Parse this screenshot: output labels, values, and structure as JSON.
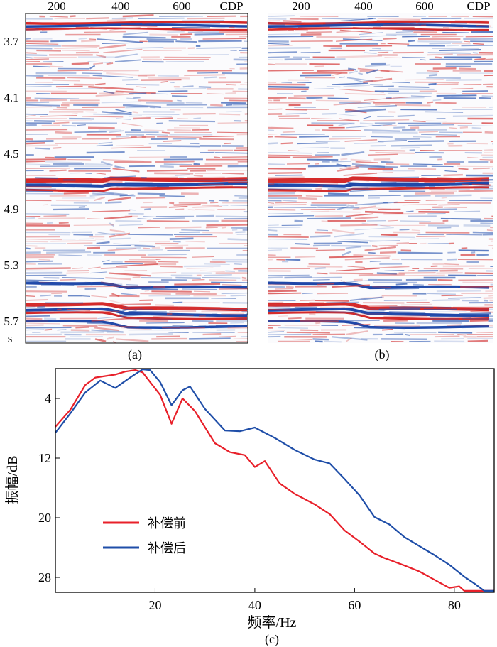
{
  "seismic_panels": [
    {
      "label": "(a)",
      "x_tick_labels": [
        "200",
        "400",
        "600"
      ],
      "x_unit": "CDP",
      "y_tick_labels": [
        "3.7",
        "4.1",
        "4.5",
        "4.9",
        "5.3",
        "5.7"
      ],
      "y_unit": "s"
    },
    {
      "label": "(b)",
      "x_tick_labels": [
        "200",
        "400",
        "600"
      ],
      "x_unit": "CDP"
    }
  ],
  "chart_data": {
    "type": "line",
    "label": "(c)",
    "xlabel": "频率/Hz",
    "ylabel": "振幅/dB",
    "xlim": [
      0,
      88
    ],
    "ylim": [
      0,
      30
    ],
    "y_inverted": true,
    "x_ticks": [
      20,
      40,
      60,
      80
    ],
    "y_ticks": [
      4,
      12,
      20,
      28
    ],
    "series": [
      {
        "name": "补偿前",
        "color": "#e8202a",
        "x": [
          0,
          3,
          6,
          8,
          10,
          12,
          14,
          16,
          17.5,
          19,
          21,
          23.3,
          25.5,
          28,
          32,
          35,
          38,
          40,
          42,
          45,
          48,
          52,
          55,
          58,
          61,
          64,
          66,
          70,
          73,
          76,
          79,
          81,
          82,
          88
        ],
        "y": [
          7.8,
          5.5,
          2.2,
          1.2,
          1.0,
          0.8,
          0.4,
          0.2,
          0.5,
          1.8,
          3.5,
          7.4,
          4.0,
          5.7,
          10.0,
          11.2,
          11.6,
          13.2,
          12.4,
          15.4,
          16.8,
          18.2,
          19.5,
          21.7,
          23.2,
          24.8,
          25.4,
          26.4,
          27.2,
          28.3,
          29.4,
          29.2,
          29.8,
          29.8
        ]
      },
      {
        "name": "补偿后",
        "color": "#1f4ea8",
        "x": [
          0,
          3,
          6,
          9,
          12,
          15,
          17.5,
          19,
          21,
          23.3,
          25.5,
          27,
          30,
          34,
          37,
          40,
          44,
          48,
          52,
          55,
          58,
          61,
          64,
          67,
          70,
          73,
          76,
          79,
          82,
          84,
          85,
          86,
          88
        ],
        "y": [
          8.6,
          6.0,
          3.2,
          1.6,
          2.6,
          1.2,
          0.1,
          0.2,
          1.8,
          4.9,
          2.9,
          2.4,
          5.4,
          8.3,
          8.4,
          7.9,
          9.3,
          10.9,
          12.2,
          12.7,
          14.8,
          17.0,
          19.9,
          20.9,
          22.6,
          23.8,
          25.0,
          26.3,
          27.9,
          28.8,
          29.3,
          29.8,
          29.8
        ]
      }
    ]
  }
}
